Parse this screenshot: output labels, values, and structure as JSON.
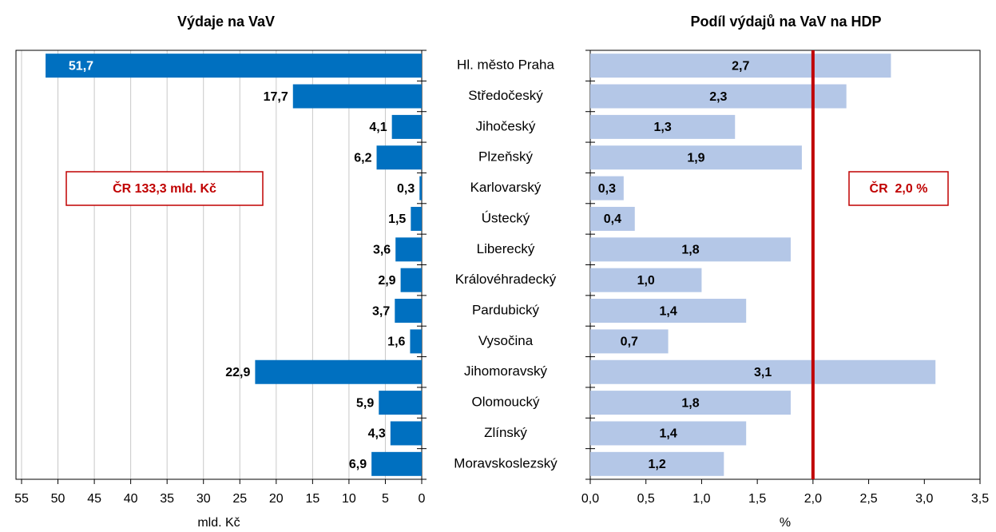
{
  "chart_data": [
    {
      "type": "bar",
      "orientation": "horizontal",
      "title": "Výdaje na VaV",
      "x_label": "mld. Kč",
      "categories": [
        "Hl. město Praha",
        "Středočeský",
        "Jihočeský",
        "Plzeňský",
        "Karlovarský",
        "Ústecký",
        "Liberecký",
        "Královéhradecký",
        "Pardubický",
        "Vysočina",
        "Jihomoravský",
        "Olomoucký",
        "Zlínský",
        "Moravskoslezský"
      ],
      "values": [
        51.7,
        17.7,
        4.1,
        6.2,
        0.3,
        1.5,
        3.6,
        2.9,
        3.7,
        1.6,
        22.9,
        5.9,
        4.3,
        6.9
      ],
      "value_labels": [
        "51,7",
        "17,7",
        "4,1",
        "6,2",
        "0,3",
        "1,5",
        "3,6",
        "2,9",
        "3,7",
        "1,6",
        "22,9",
        "5,9",
        "4,3",
        "6,9"
      ],
      "color": "#0070c0",
      "xlim": [
        55,
        0
      ],
      "xticks": [
        55,
        50,
        45,
        40,
        35,
        30,
        25,
        20,
        15,
        10,
        5,
        0
      ],
      "grid": true,
      "annotation": "ČR 133,3 mld. Kč"
    },
    {
      "type": "bar",
      "orientation": "horizontal",
      "title": "Podíl výdajů na VaV na HDP",
      "x_label": "%",
      "values": [
        2.7,
        2.3,
        1.3,
        1.9,
        0.3,
        0.4,
        1.8,
        1.0,
        1.4,
        0.7,
        3.1,
        1.8,
        1.4,
        1.2
      ],
      "value_labels": [
        "2,7",
        "2,3",
        "1,3",
        "1,9",
        "0,3",
        "0,4",
        "1,8",
        "1,0",
        "1,4",
        "0,7",
        "3,1",
        "1,8",
        "1,4",
        "1,2"
      ],
      "color": "#b4c7e7",
      "xlim": [
        0,
        3.5
      ],
      "xticks": [
        {
          "value": 0,
          "label": "0,0"
        },
        {
          "value": 0.5,
          "label": "0,5"
        },
        {
          "value": 1,
          "label": "1,0"
        },
        {
          "value": 1.5,
          "label": "1,5"
        },
        {
          "value": 2,
          "label": "2,0"
        },
        {
          "value": 2.5,
          "label": "2,5"
        },
        {
          "value": 3,
          "label": "3,0"
        },
        {
          "value": 3.5,
          "label": "3,5"
        }
      ],
      "grid": false,
      "reference_line": {
        "value": 2,
        "label": "ČR  2,0 %",
        "color": "#c00000"
      }
    }
  ]
}
